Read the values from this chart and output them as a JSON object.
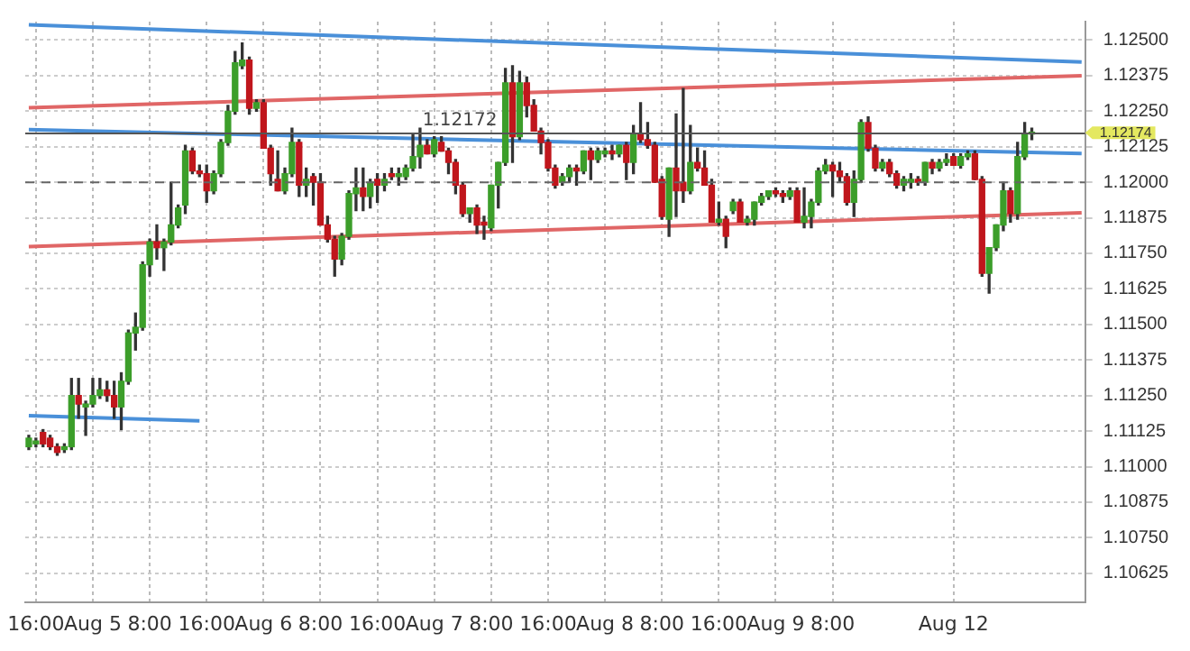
{
  "chart_data": {
    "type": "candlestick",
    "categories": [
      null,
      "16:00",
      null,
      null,
      null,
      null,
      null,
      null,
      null,
      "Aug 5",
      null,
      null,
      null,
      null,
      null,
      null,
      null,
      "8:00",
      null,
      null,
      null,
      null,
      null,
      null,
      null,
      "16:00",
      null,
      null,
      null,
      null,
      null,
      null,
      null,
      "Aug 6",
      null,
      null,
      null,
      null,
      null,
      null,
      null,
      "8:00",
      null,
      null,
      null,
      null,
      null,
      null,
      null,
      "16:00",
      null,
      null,
      null,
      null,
      null,
      null,
      null,
      "Aug 7",
      null,
      null,
      null,
      null,
      null,
      null,
      null,
      "8:00",
      null,
      null,
      null,
      null,
      null,
      null,
      null,
      "16:00",
      null,
      null,
      null,
      null,
      null,
      null,
      null,
      "Aug 8",
      null,
      null,
      null,
      null,
      null,
      null,
      null,
      "8:00",
      null,
      null,
      null,
      null,
      null,
      null,
      null,
      "16:00",
      null,
      null,
      null,
      null,
      null,
      null,
      null,
      "Aug 9",
      null,
      null,
      null,
      null,
      null,
      null,
      null,
      "8:00",
      null,
      null,
      null,
      null,
      null,
      null,
      null,
      null,
      null,
      null,
      null,
      null,
      null,
      null,
      null,
      null,
      "Aug 12",
      null,
      null,
      null,
      null,
      null,
      null,
      null,
      null,
      null,
      null,
      null,
      null,
      null,
      null,
      null,
      null,
      null,
      null
    ],
    "ohlc": [
      [
        1.1107,
        1.1111,
        1.1106,
        1.111
      ],
      [
        1.1108,
        1.111,
        1.1107,
        1.1109
      ],
      [
        1.1112,
        1.1113,
        1.1107,
        1.1108
      ],
      [
        1.111,
        1.1111,
        1.1106,
        1.1107
      ],
      [
        1.1107,
        1.1108,
        1.1104,
        1.1105
      ],
      [
        1.1106,
        1.1108,
        1.1105,
        1.1107
      ],
      [
        1.1107,
        1.1131,
        1.1106,
        1.1125
      ],
      [
        1.1125,
        1.1131,
        1.1117,
        1.1122
      ],
      [
        1.1121,
        1.1123,
        1.1111,
        1.1122
      ],
      [
        1.1122,
        1.1131,
        1.1121,
        1.1125
      ],
      [
        1.1125,
        1.1131,
        1.1124,
        1.1127
      ],
      [
        1.1127,
        1.113,
        1.1123,
        1.1125
      ],
      [
        1.1125,
        1.113,
        1.1117,
        1.1121
      ],
      [
        1.1121,
        1.1133,
        1.1113,
        1.113
      ],
      [
        1.113,
        1.1148,
        1.1129,
        1.1147
      ],
      [
        1.1147,
        1.1154,
        1.1141,
        1.1149
      ],
      [
        1.1149,
        1.1172,
        1.1148,
        1.1171
      ],
      [
        1.1171,
        1.118,
        1.1167,
        1.1179
      ],
      [
        1.1179,
        1.1185,
        1.1173,
        1.1177
      ],
      [
        1.1177,
        1.118,
        1.1169,
        1.1179
      ],
      [
        1.1179,
        1.12,
        1.1178,
        1.1185
      ],
      [
        1.1185,
        1.1192,
        1.1184,
        1.1191
      ],
      [
        1.1192,
        1.1213,
        1.1189,
        1.1211
      ],
      [
        1.1211,
        1.1212,
        1.1203,
        1.1204
      ],
      [
        1.1204,
        1.1206,
        1.1202,
        1.1203
      ],
      [
        1.1203,
        1.1206,
        1.1193,
        1.1197
      ],
      [
        1.1197,
        1.1204,
        1.1196,
        1.1203
      ],
      [
        1.1203,
        1.1215,
        1.1202,
        1.1214
      ],
      [
        1.1214,
        1.1227,
        1.1213,
        1.1225
      ],
      [
        1.1225,
        1.1246,
        1.1224,
        1.1242
      ],
      [
        1.1241,
        1.1249,
        1.124,
        1.1243
      ],
      [
        1.1243,
        1.1244,
        1.1224,
        1.1226
      ],
      [
        1.1226,
        1.1229,
        1.1225,
        1.1228
      ],
      [
        1.1228,
        1.1229,
        1.1212,
        1.1212
      ],
      [
        1.1212,
        1.1213,
        1.1199,
        1.1203
      ],
      [
        1.1201,
        1.1211,
        1.1197,
        1.1197
      ],
      [
        1.1197,
        1.1205,
        1.1196,
        1.1203
      ],
      [
        1.1203,
        1.1219,
        1.1202,
        1.1214
      ],
      [
        1.1214,
        1.1215,
        1.1195,
        1.1199
      ],
      [
        1.1199,
        1.1205,
        1.1195,
        1.1201
      ],
      [
        1.1202,
        1.1203,
        1.1192,
        1.12
      ],
      [
        1.12,
        1.1203,
        1.1185,
        1.1185
      ],
      [
        1.1185,
        1.1188,
        1.1179,
        1.118
      ],
      [
        1.118,
        1.1181,
        1.1167,
        1.1173
      ],
      [
        1.1173,
        1.1182,
        1.1171,
        1.1181
      ],
      [
        1.1181,
        1.1197,
        1.118,
        1.1196
      ],
      [
        1.1196,
        1.1205,
        1.119,
        1.1198
      ],
      [
        1.1198,
        1.1205,
        1.119,
        1.1195
      ],
      [
        1.1195,
        1.1201,
        1.1191,
        1.12
      ],
      [
        1.1201,
        1.1203,
        1.1193,
        1.1199
      ],
      [
        1.1199,
        1.1203,
        1.1197,
        1.1201
      ],
      [
        1.1203,
        1.1205,
        1.1201,
        1.1202
      ],
      [
        1.1202,
        1.1205,
        1.1199,
        1.1203
      ],
      [
        1.1202,
        1.1206,
        1.1201,
        1.1205
      ],
      [
        1.1205,
        1.1217,
        1.1204,
        1.1209
      ],
      [
        1.1209,
        1.1219,
        1.1205,
        1.1213
      ],
      [
        1.1213,
        1.1215,
        1.121,
        1.121
      ],
      [
        1.121,
        1.1216,
        1.1209,
        1.1215
      ],
      [
        1.1214,
        1.1216,
        1.1211,
        1.1211
      ],
      [
        1.1211,
        1.1212,
        1.1203,
        1.1207
      ],
      [
        1.1207,
        1.1208,
        1.1196,
        1.1199
      ],
      [
        1.1199,
        1.12,
        1.1188,
        1.1189
      ],
      [
        1.1189,
        1.1191,
        1.1186,
        1.1191
      ],
      [
        1.1191,
        1.1192,
        1.1182,
        1.1185
      ],
      [
        1.1186,
        1.1188,
        1.118,
        1.1185
      ],
      [
        1.1184,
        1.1199,
        1.1183,
        1.1199
      ],
      [
        1.1199,
        1.1207,
        1.1191,
        1.1207
      ],
      [
        1.1207,
        1.124,
        1.1206,
        1.1235
      ],
      [
        1.1235,
        1.1241,
        1.1207,
        1.1216
      ],
      [
        1.1216,
        1.1239,
        1.1215,
        1.1235
      ],
      [
        1.1235,
        1.1237,
        1.1223,
        1.1227
      ],
      [
        1.1227,
        1.1229,
        1.1218,
        1.1218
      ],
      [
        1.1218,
        1.1219,
        1.121,
        1.1214
      ],
      [
        1.1214,
        1.1215,
        1.1204,
        1.1205
      ],
      [
        1.1205,
        1.1206,
        1.1198,
        1.1199
      ],
      [
        1.12,
        1.1203,
        1.1199,
        1.1202
      ],
      [
        1.1202,
        1.1206,
        1.12,
        1.1205
      ],
      [
        1.1205,
        1.1206,
        1.1199,
        1.1204
      ],
      [
        1.1204,
        1.1211,
        1.1203,
        1.1211
      ],
      [
        1.1211,
        1.1212,
        1.1201,
        1.1208
      ],
      [
        1.1208,
        1.1212,
        1.1207,
        1.1211
      ],
      [
        1.121,
        1.1212,
        1.1209,
        1.1211
      ],
      [
        1.1211,
        1.1213,
        1.1208,
        1.121
      ],
      [
        1.121,
        1.1213,
        1.1209,
        1.1213
      ],
      [
        1.1213,
        1.1214,
        1.1201,
        1.1207
      ],
      [
        1.1207,
        1.122,
        1.1203,
        1.1217
      ],
      [
        1.1217,
        1.1228,
        1.1214,
        1.1215
      ],
      [
        1.1215,
        1.1221,
        1.1212,
        1.1213
      ],
      [
        1.1213,
        1.1214,
        1.12,
        1.12
      ],
      [
        1.1201,
        1.1202,
        1.1187,
        1.1188
      ],
      [
        1.1187,
        1.1205,
        1.1181,
        1.1205
      ],
      [
        1.1205,
        1.1224,
        1.1188,
        1.1197
      ],
      [
        1.12,
        1.1233,
        1.1193,
        1.1197
      ],
      [
        1.1197,
        1.122,
        1.1196,
        1.1207
      ],
      [
        1.1207,
        1.1212,
        1.1204,
        1.1205
      ],
      [
        1.1205,
        1.1211,
        1.1199,
        1.1199
      ],
      [
        1.1199,
        1.1201,
        1.1186,
        1.1186
      ],
      [
        1.1186,
        1.1193,
        1.1185,
        1.1187
      ],
      [
        1.1187,
        1.1188,
        1.1177,
        1.1181
      ],
      [
        1.119,
        1.1194,
        1.1189,
        1.1193
      ],
      [
        1.1193,
        1.1194,
        1.1186,
        1.1186
      ],
      [
        1.1186,
        1.1188,
        1.1185,
        1.1187
      ],
      [
        1.1187,
        1.1193,
        1.1185,
        1.1193
      ],
      [
        1.1193,
        1.1196,
        1.1192,
        1.1195
      ],
      [
        1.1195,
        1.1197,
        1.1194,
        1.1197
      ],
      [
        1.1197,
        1.1198,
        1.1195,
        1.1196
      ],
      [
        1.1196,
        1.1197,
        1.1193,
        1.1195
      ],
      [
        1.1195,
        1.1198,
        1.1194,
        1.1197
      ],
      [
        1.1197,
        1.1198,
        1.1186,
        1.1186
      ],
      [
        1.1186,
        1.1198,
        1.1184,
        1.1188
      ],
      [
        1.1188,
        1.1194,
        1.1184,
        1.1193
      ],
      [
        1.1193,
        1.1205,
        1.1192,
        1.1204
      ],
      [
        1.1204,
        1.1208,
        1.1203,
        1.1206
      ],
      [
        1.1206,
        1.1207,
        1.1195,
        1.1204
      ],
      [
        1.1204,
        1.1207,
        1.12,
        1.1202
      ],
      [
        1.1202,
        1.1203,
        1.1192,
        1.1193
      ],
      [
        1.1193,
        1.1204,
        1.1188,
        1.1201
      ],
      [
        1.1201,
        1.1222,
        1.12,
        1.1221
      ],
      [
        1.1221,
        1.1223,
        1.1211,
        1.1212
      ],
      [
        1.1212,
        1.1213,
        1.1204,
        1.1205
      ],
      [
        1.1205,
        1.1208,
        1.1204,
        1.1207
      ],
      [
        1.1207,
        1.1208,
        1.1202,
        1.1203
      ],
      [
        1.1203,
        1.1204,
        1.1198,
        1.1199
      ],
      [
        1.1199,
        1.1202,
        1.1197,
        1.1201
      ],
      [
        1.12,
        1.1203,
        1.1198,
        1.1201
      ],
      [
        1.1201,
        1.1202,
        1.1199,
        1.12
      ],
      [
        1.12,
        1.1207,
        1.1199,
        1.1207
      ],
      [
        1.1207,
        1.1208,
        1.1203,
        1.1205
      ],
      [
        1.1205,
        1.1208,
        1.1204,
        1.1207
      ],
      [
        1.1207,
        1.121,
        1.1206,
        1.1208
      ],
      [
        1.1209,
        1.121,
        1.1206,
        1.1206
      ],
      [
        1.1206,
        1.121,
        1.1205,
        1.1209
      ],
      [
        1.1209,
        1.1211,
        1.1208,
        1.121
      ],
      [
        1.121,
        1.1211,
        1.1201,
        1.1201
      ],
      [
        1.1201,
        1.1202,
        1.1167,
        1.1168
      ],
      [
        1.1168,
        1.1177,
        1.1161,
        1.1177
      ],
      [
        1.1177,
        1.1185,
        1.1176,
        1.1185
      ],
      [
        1.1185,
        1.12,
        1.1183,
        1.1197
      ],
      [
        1.1197,
        1.1198,
        1.1186,
        1.1189
      ],
      [
        1.1189,
        1.1214,
        1.1187,
        1.1209
      ],
      [
        1.1209,
        1.1221,
        1.1208,
        1.1217
      ],
      [
        1.1217,
        1.1219,
        1.1215,
        1.12174
      ],
      null,
      null,
      null,
      null,
      null,
      null,
      null
    ],
    "series": [
      {
        "type": "line",
        "color": "#4a90d9",
        "values": [
          1.12554,
          null,
          null,
          null,
          null,
          null,
          null,
          null,
          null,
          null,
          null,
          null,
          null,
          null,
          null,
          null,
          null,
          null,
          null,
          null,
          null,
          null,
          null,
          null,
          null,
          null,
          null,
          null,
          null,
          null,
          null,
          null,
          null,
          null,
          null,
          null,
          null,
          null,
          null,
          null,
          null,
          null,
          null,
          null,
          null,
          null,
          null,
          null,
          null,
          null,
          null,
          null,
          null,
          null,
          null,
          null,
          null,
          null,
          null,
          null,
          null,
          null,
          null,
          null,
          null,
          null,
          null,
          null,
          null,
          null,
          null,
          null,
          null,
          null,
          null,
          null,
          null,
          null,
          null,
          null,
          null,
          null,
          null,
          null,
          null,
          null,
          null,
          null,
          null,
          null,
          null,
          null,
          null,
          null,
          null,
          null,
          null,
          null,
          null,
          null,
          null,
          null,
          null,
          null,
          null,
          null,
          null,
          null,
          null,
          null,
          null,
          null,
          null,
          null,
          null,
          null,
          null,
          null,
          null,
          null,
          null,
          null,
          null,
          null,
          null,
          null,
          null,
          null,
          null,
          null,
          null,
          null,
          null,
          null,
          null,
          null,
          null,
          null,
          null,
          null,
          null,
          null,
          null,
          null,
          null,
          null,
          null,
          null,
          1.12423
        ]
      },
      {
        "type": "line",
        "color": "#e06666",
        "values": [
          1.12262,
          null,
          null,
          null,
          null,
          null,
          null,
          null,
          null,
          null,
          null,
          null,
          null,
          null,
          null,
          null,
          null,
          null,
          null,
          null,
          null,
          null,
          null,
          null,
          null,
          null,
          null,
          null,
          null,
          null,
          null,
          null,
          null,
          null,
          null,
          null,
          null,
          null,
          null,
          null,
          null,
          null,
          null,
          null,
          null,
          null,
          null,
          null,
          null,
          null,
          null,
          null,
          null,
          null,
          null,
          null,
          null,
          null,
          null,
          null,
          null,
          null,
          null,
          null,
          null,
          null,
          null,
          null,
          null,
          null,
          null,
          null,
          null,
          null,
          null,
          null,
          null,
          null,
          null,
          null,
          null,
          null,
          null,
          null,
          null,
          null,
          null,
          null,
          null,
          null,
          null,
          null,
          null,
          null,
          null,
          null,
          null,
          null,
          null,
          null,
          null,
          null,
          null,
          null,
          null,
          null,
          null,
          null,
          null,
          null,
          null,
          null,
          null,
          null,
          null,
          null,
          null,
          null,
          null,
          null,
          null,
          null,
          null,
          null,
          null,
          null,
          null,
          null,
          null,
          null,
          null,
          null,
          null,
          null,
          null,
          null,
          null,
          null,
          null,
          null,
          null,
          null,
          null,
          null,
          null,
          null,
          null,
          null,
          1.12375
        ]
      },
      {
        "type": "line",
        "color": "#4a90d9",
        "values": [
          1.12185,
          null,
          null,
          null,
          null,
          null,
          null,
          null,
          null,
          null,
          null,
          null,
          null,
          null,
          null,
          null,
          null,
          null,
          null,
          null,
          null,
          null,
          null,
          null,
          null,
          null,
          null,
          null,
          null,
          null,
          null,
          null,
          null,
          null,
          null,
          null,
          null,
          null,
          null,
          null,
          null,
          null,
          null,
          null,
          null,
          null,
          null,
          null,
          null,
          null,
          null,
          null,
          null,
          null,
          null,
          null,
          null,
          null,
          null,
          null,
          null,
          null,
          null,
          null,
          null,
          null,
          null,
          null,
          null,
          null,
          null,
          null,
          null,
          null,
          null,
          null,
          null,
          null,
          null,
          null,
          null,
          null,
          null,
          null,
          null,
          null,
          null,
          null,
          null,
          null,
          null,
          null,
          null,
          null,
          null,
          null,
          null,
          null,
          null,
          null,
          null,
          null,
          null,
          null,
          null,
          null,
          null,
          null,
          null,
          null,
          null,
          null,
          null,
          null,
          null,
          null,
          null,
          null,
          null,
          null,
          null,
          null,
          null,
          null,
          null,
          null,
          null,
          null,
          null,
          null,
          null,
          null,
          null,
          null,
          null,
          null,
          null,
          null,
          null,
          null,
          null,
          null,
          null,
          null,
          null,
          null,
          null,
          null,
          1.12101
        ]
      },
      {
        "type": "line",
        "color": "#e06666",
        "values": [
          1.11774,
          null,
          null,
          null,
          null,
          null,
          null,
          null,
          null,
          null,
          null,
          null,
          null,
          null,
          null,
          null,
          null,
          null,
          null,
          null,
          null,
          null,
          null,
          null,
          null,
          null,
          null,
          null,
          null,
          null,
          null,
          null,
          null,
          null,
          null,
          null,
          null,
          null,
          null,
          null,
          null,
          null,
          null,
          null,
          null,
          null,
          null,
          null,
          null,
          null,
          null,
          null,
          null,
          null,
          null,
          null,
          null,
          null,
          null,
          null,
          null,
          null,
          null,
          null,
          null,
          null,
          null,
          null,
          null,
          null,
          null,
          null,
          null,
          null,
          null,
          null,
          null,
          null,
          null,
          null,
          null,
          null,
          null,
          null,
          null,
          null,
          null,
          null,
          null,
          null,
          null,
          null,
          null,
          null,
          null,
          null,
          null,
          null,
          null,
          null,
          null,
          null,
          null,
          null,
          null,
          null,
          null,
          null,
          null,
          null,
          null,
          null,
          null,
          null,
          null,
          null,
          null,
          null,
          null,
          null,
          null,
          null,
          null,
          null,
          null,
          null,
          null,
          null,
          null,
          null,
          null,
          null,
          null,
          null,
          null,
          null,
          null,
          null,
          null,
          null,
          null,
          null,
          null,
          null,
          null,
          null,
          null,
          null,
          1.11893
        ]
      },
      {
        "type": "line",
        "color": "#4a90d9",
        "values": [
          1.11179,
          null,
          null,
          null,
          null,
          null,
          null,
          null,
          null,
          null,
          null,
          null,
          null,
          null,
          null,
          null,
          null,
          null,
          null,
          null,
          null,
          null,
          null,
          null,
          1.11161,
          null,
          null,
          null,
          null,
          null,
          null,
          null,
          null,
          null,
          null,
          null,
          null,
          null,
          null,
          null,
          null,
          null,
          null,
          null,
          null,
          null,
          null,
          null,
          null,
          null,
          null,
          null,
          null,
          null,
          null,
          null,
          null,
          null,
          null,
          null,
          null,
          null,
          null,
          null,
          null,
          null,
          null,
          null,
          null,
          null,
          null,
          null,
          null,
          null,
          null,
          null,
          null,
          null,
          null,
          null,
          null,
          null,
          null,
          null,
          null,
          null,
          null,
          null,
          null,
          null,
          null,
          null,
          null,
          null,
          null,
          null,
          null,
          null,
          null,
          null,
          null,
          null,
          null,
          null,
          null,
          null,
          null,
          null,
          null,
          null,
          null,
          null,
          null,
          null,
          null,
          null,
          null,
          null,
          null,
          null,
          null,
          null,
          null,
          null,
          null,
          null,
          null,
          null,
          null,
          null,
          null,
          null,
          null,
          null,
          null,
          null,
          null,
          null,
          null,
          null,
          null,
          null,
          null,
          null,
          null,
          null,
          null,
          null,
          null
        ]
      }
    ],
    "ylim": [
      1.10524,
      1.12565
    ],
    "yticks": [
      {
        "value": 1.10625,
        "label": "1.10625"
      },
      {
        "value": 1.1075,
        "label": "1.10750"
      },
      {
        "value": 1.10875,
        "label": "1.10875"
      },
      {
        "value": 1.11,
        "label": "1.11000"
      },
      {
        "value": 1.11125,
        "label": "1.11125"
      },
      {
        "value": 1.1125,
        "label": "1.11250"
      },
      {
        "value": 1.11375,
        "label": "1.11375"
      },
      {
        "value": 1.115,
        "label": "1.11500"
      },
      {
        "value": 1.11625,
        "label": "1.11625"
      },
      {
        "value": 1.1175,
        "label": "1.11750"
      },
      {
        "value": 1.11875,
        "label": "1.11875"
      },
      {
        "value": 1.12,
        "label": "1.12000"
      },
      {
        "value": 1.12125,
        "label": "1.12125"
      },
      {
        "value": 1.1225,
        "label": "1.12250"
      },
      {
        "value": 1.12375,
        "label": "1.12375"
      },
      {
        "value": 1.125,
        "label": "1.12500"
      }
    ],
    "ref_lines": [
      {
        "axis": "y",
        "value": 1.12172,
        "label": "1.12172",
        "color": "#555555",
        "line_style": "solid"
      },
      {
        "axis": "y",
        "value": 1.12,
        "label": null,
        "color": "#666666",
        "line_style": "dashed"
      }
    ],
    "annotations": [
      "1.12174"
    ],
    "grid": true,
    "legend": false
  }
}
